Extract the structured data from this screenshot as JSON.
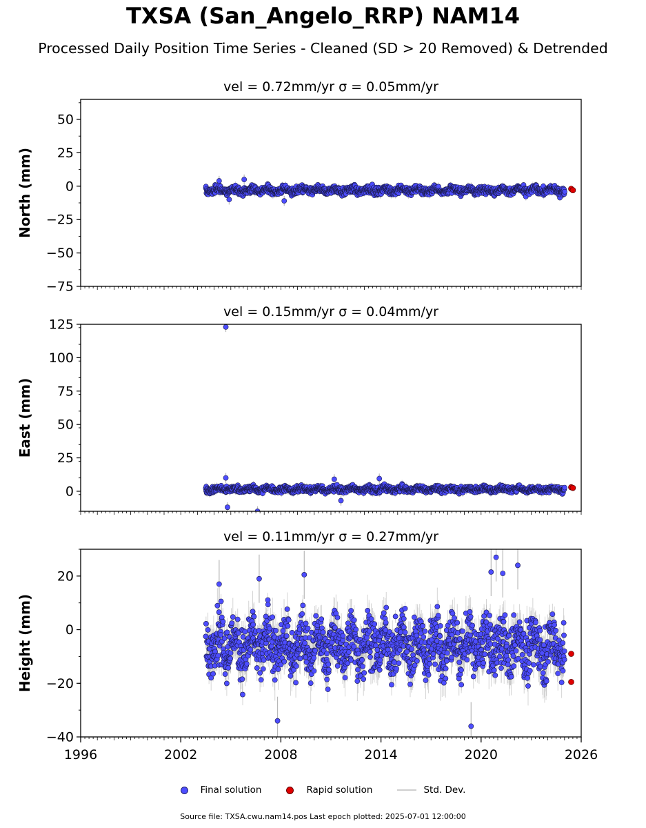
{
  "title": "TXSA (San_Angelo_RRP) NAM14",
  "subtitle": "Processed Daily Position Time Series - Cleaned (SD > 20 Removed) & Detrended",
  "legend": {
    "final": "Final solution",
    "rapid": "Rapid solution",
    "std": "Std. Dev."
  },
  "footer": "Source file: TXSA.cwu.nam14.pos  Last epoch plotted: 2025-07-01 12:00:00",
  "colors": {
    "final": "#4d4dff",
    "rapid": "#e00000",
    "std": "#b8b8b8"
  },
  "chart_data": [
    {
      "type": "scatter",
      "title": "vel = 0.72mm/yr   σ = 0.05mm/yr",
      "ylabel": "North (mm)",
      "xlim": [
        1996,
        2026
      ],
      "ylim": [
        -75,
        65
      ],
      "yticks": [
        50,
        25,
        0,
        -25,
        -50,
        -75
      ],
      "xticks": [],
      "data_range": [
        2003.5,
        2025.0
      ],
      "final_summary": {
        "center": -3.0,
        "spread": 2.0,
        "sd": 2.5
      },
      "outliers": [
        [
          2004.3,
          4.0
        ],
        [
          2005.8,
          5.0
        ],
        [
          2004.9,
          -10.0
        ],
        [
          2008.2,
          -11.0
        ]
      ],
      "rapid": [
        [
          2025.4,
          -2.0
        ],
        [
          2025.5,
          -3.0
        ]
      ]
    },
    {
      "type": "scatter",
      "title": "vel = 0.15mm/yr   σ = 0.04mm/yr",
      "ylabel": "East (mm)",
      "xlim": [
        1996,
        2026
      ],
      "ylim": [
        -15,
        125
      ],
      "yticks": [
        125,
        100,
        75,
        50,
        25,
        0
      ],
      "xticks": [],
      "data_range": [
        2003.5,
        2025.0
      ],
      "final_summary": {
        "center": 1.5,
        "spread": 1.6,
        "sd": 2.5
      },
      "outliers": [
        [
          2004.7,
          123.0
        ],
        [
          2004.7,
          10.0
        ],
        [
          2004.8,
          -12.0
        ],
        [
          2006.6,
          -15.0
        ],
        [
          2011.2,
          9.0
        ],
        [
          2011.6,
          -7.0
        ],
        [
          2013.9,
          9.5
        ]
      ],
      "rapid": [
        [
          2025.4,
          3.0
        ],
        [
          2025.5,
          2.5
        ]
      ]
    },
    {
      "type": "scatter",
      "title": "vel = 0.11mm/yr   σ = 0.27mm/yr",
      "ylabel": "Height (mm)",
      "xlim": [
        1996,
        2026
      ],
      "ylim": [
        -40,
        30
      ],
      "yticks": [
        20,
        0,
        -20,
        -40
      ],
      "xticks": [
        "1996",
        "2002",
        "2008",
        "2014",
        "2020",
        "2026"
      ],
      "xtick_values": [
        1996,
        2002,
        2008,
        2014,
        2020,
        2026
      ],
      "data_range": [
        2003.5,
        2025.0
      ],
      "final_summary": {
        "center": -6.0,
        "spread": 7.0,
        "sd": 6.0
      },
      "outliers": [
        [
          2004.3,
          17.0
        ],
        [
          2006.7,
          19.0
        ],
        [
          2009.4,
          20.5
        ],
        [
          2020.6,
          21.5
        ],
        [
          2020.9,
          27.0
        ],
        [
          2021.3,
          21.0
        ],
        [
          2022.2,
          24.0
        ],
        [
          2019.4,
          -36.0
        ],
        [
          2007.8,
          -34.0
        ]
      ],
      "rapid": [
        [
          2025.4,
          -9.0
        ],
        [
          2025.4,
          -19.5
        ]
      ]
    }
  ]
}
